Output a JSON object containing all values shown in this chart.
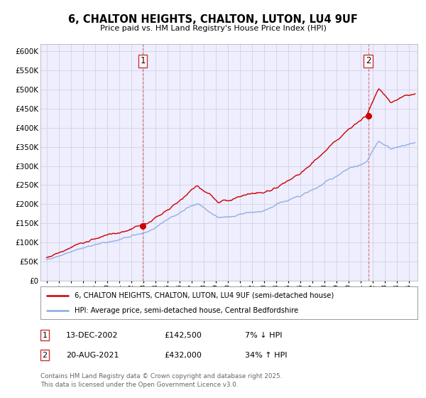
{
  "title": "6, CHALTON HEIGHTS, CHALTON, LUTON, LU4 9UF",
  "subtitle": "Price paid vs. HM Land Registry's House Price Index (HPI)",
  "legend_line1": "6, CHALTON HEIGHTS, CHALTON, LUTON, LU4 9UF (semi-detached house)",
  "legend_line2": "HPI: Average price, semi-detached house, Central Bedfordshire",
  "sale1_date": "13-DEC-2002",
  "sale1_price": "£142,500",
  "sale1_hpi": "7% ↓ HPI",
  "sale1_year": 2002.96,
  "sale1_value": 142500,
  "sale2_date": "20-AUG-2021",
  "sale2_price": "£432,000",
  "sale2_hpi": "34% ↑ HPI",
  "sale2_year": 2021.63,
  "sale2_value": 432000,
  "vline1_x": 2002.96,
  "vline2_x": 2021.63,
  "xmin": 1994.5,
  "xmax": 2025.7,
  "ymin": 0,
  "ymax": 620000,
  "property_line_color": "#cc0000",
  "hpi_line_color": "#88aadd",
  "vline_color": "#cc6666",
  "background_color": "#ffffff",
  "plot_bg_color": "#eeeeff",
  "grid_color": "#ccccdd",
  "footer_text": "Contains HM Land Registry data © Crown copyright and database right 2025.\nThis data is licensed under the Open Government Licence v3.0.",
  "yticks": [
    0,
    50000,
    100000,
    150000,
    200000,
    250000,
    300000,
    350000,
    400000,
    450000,
    500000,
    550000,
    600000
  ],
  "ytick_labels": [
    "£0",
    "£50K",
    "£100K",
    "£150K",
    "£200K",
    "£250K",
    "£300K",
    "£350K",
    "£400K",
    "£450K",
    "£500K",
    "£550K",
    "£600K"
  ],
  "xticks": [
    1995,
    1996,
    1997,
    1998,
    1999,
    2000,
    2001,
    2002,
    2003,
    2004,
    2005,
    2006,
    2007,
    2008,
    2009,
    2010,
    2011,
    2012,
    2013,
    2014,
    2015,
    2016,
    2017,
    2018,
    2019,
    2020,
    2021,
    2022,
    2023,
    2024,
    2025
  ]
}
